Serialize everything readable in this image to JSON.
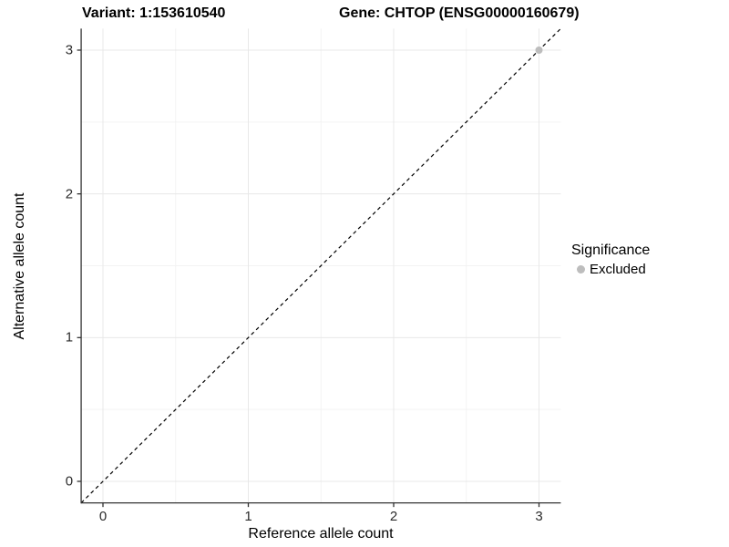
{
  "figure": {
    "title_left": "Variant: 1:153610540",
    "title_right": "Gene: CHTOP (ENSG00000160679)"
  },
  "chart_data": {
    "type": "scatter",
    "title": "Variant: 1:153610540   Gene: CHTOP (ENSG00000160679)",
    "xlabel": "Reference allele count",
    "ylabel": "Alternative allele count",
    "xlim": [
      -0.15,
      3.15
    ],
    "ylim": [
      -0.15,
      3.15
    ],
    "x_ticks": [
      0,
      1,
      2,
      3
    ],
    "y_ticks": [
      0,
      1,
      2,
      3
    ],
    "grid": {
      "on": true,
      "major_color": "#e8e8e8",
      "minor_color": "#f3f3f3",
      "minor_positions": [
        0.5,
        1.5,
        2.5
      ]
    },
    "reference_line": {
      "style": "dashed",
      "slope": 1,
      "intercept": 0,
      "color": "#000000"
    },
    "points": [
      {
        "x": 3,
        "y": 3,
        "series": "Excluded",
        "color": "#bdbdbd"
      }
    ],
    "legend": {
      "title": "Significance",
      "position": "right",
      "items": [
        {
          "label": "Excluded",
          "color": "#bdbdbd"
        }
      ]
    },
    "axis_color": "#333333",
    "background": "#ffffff"
  }
}
